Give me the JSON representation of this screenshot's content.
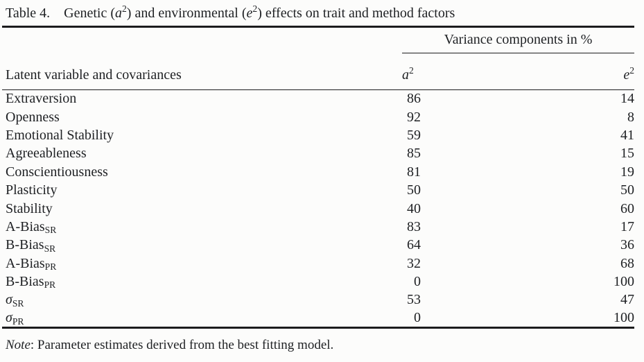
{
  "title": {
    "label": "Table 4.",
    "text": "Genetic (*a*^2^) and environmental (*e*^2^) effects on trait and method factors"
  },
  "table": {
    "spanner": "Variance components in %",
    "stub_header": "Latent variable and covariances",
    "col_headers": [
      "*a*^2^",
      "*e*^2^"
    ],
    "rows": [
      {
        "label": "Extraversion",
        "a2": "86",
        "e2": "14"
      },
      {
        "label": "Openness",
        "a2": "92",
        "e2": "8"
      },
      {
        "label": "Emotional Stability",
        "a2": "59",
        "e2": "41"
      },
      {
        "label": "Agreeableness",
        "a2": "85",
        "e2": "15"
      },
      {
        "label": "Conscientiousness",
        "a2": "81",
        "e2": "19"
      },
      {
        "label": "Plasticity",
        "a2": "50",
        "e2": "50"
      },
      {
        "label": "Stability",
        "a2": "40",
        "e2": "60"
      },
      {
        "label": "A-Bias~SR~",
        "a2": "83",
        "e2": "17"
      },
      {
        "label": "B-Bias~SR~",
        "a2": "64",
        "e2": "36"
      },
      {
        "label": "A-Bias~PR~",
        "a2": "32",
        "e2": "68"
      },
      {
        "label": "B-Bias~PR~",
        "a2": "0",
        "e2": "100"
      },
      {
        "label": "*σ*~SR~",
        "a2": "53",
        "e2": "47"
      },
      {
        "label": "*σ*~PR~",
        "a2": "0",
        "e2": "100"
      }
    ]
  },
  "note": "*Note*: Parameter estimates derived from the best fitting model.",
  "colors": {
    "text": "#1e2023",
    "rule": "#1b1b1d",
    "background": "#fcfcfb"
  }
}
